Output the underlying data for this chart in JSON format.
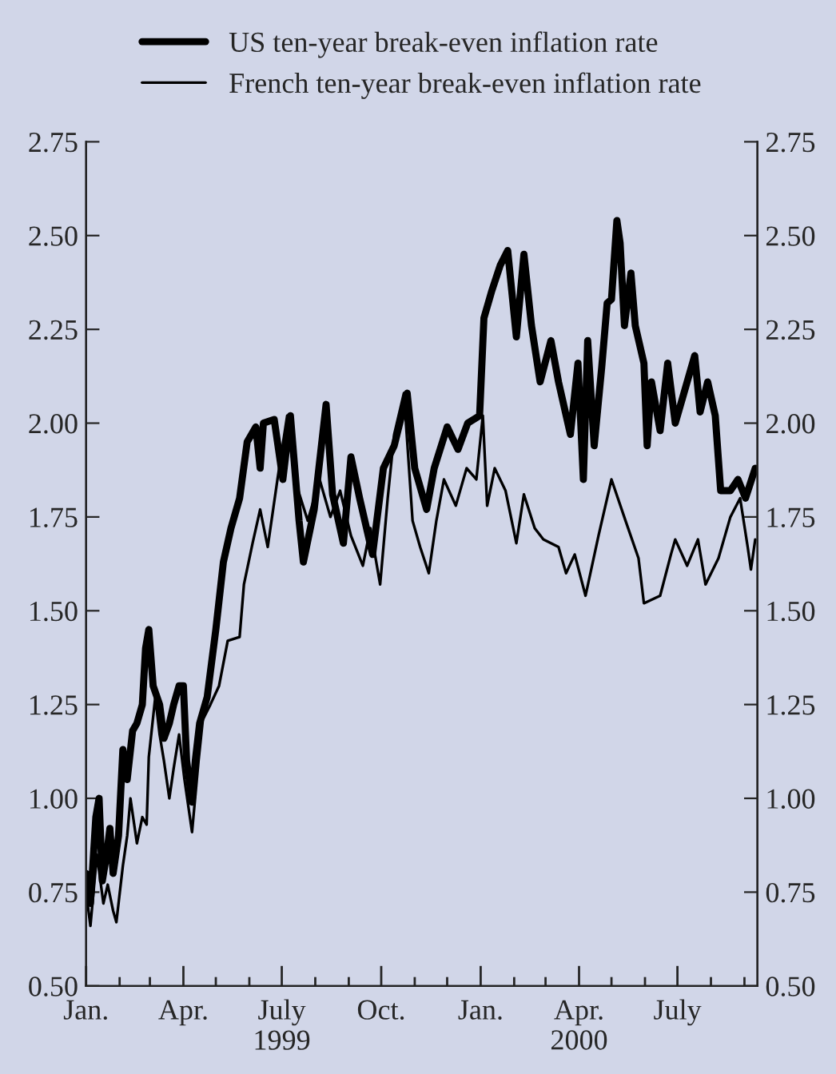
{
  "chart_data": {
    "type": "line",
    "series": [
      {
        "name": "US ten-year break-even inflation rate",
        "color": "#000000",
        "x": [
          "1999-01-01",
          "1999-01-05",
          "1999-01-10",
          "1999-01-13",
          "1999-01-16",
          "1999-01-20",
          "1999-01-23",
          "1999-01-26",
          "1999-01-31",
          "1999-02-04",
          "1999-02-08",
          "1999-02-13",
          "1999-02-17",
          "1999-02-22",
          "1999-02-25",
          "1999-02-28",
          "1999-03-04",
          "1999-03-10",
          "1999-03-14",
          "1999-03-19",
          "1999-03-23",
          "1999-03-28",
          "1999-04-01",
          "1999-04-04",
          "1999-04-09",
          "1999-04-12",
          "1999-04-16",
          "1999-04-23",
          "1999-05-01",
          "1999-05-08",
          "1999-05-15",
          "1999-05-23",
          "1999-05-30",
          "1999-06-07",
          "1999-06-11",
          "1999-06-14",
          "1999-06-24",
          "1999-07-02",
          "1999-07-09",
          "1999-07-17",
          "1999-07-21",
          "1999-07-31",
          "1999-08-11",
          "1999-08-17",
          "1999-08-27",
          "1999-09-03",
          "1999-09-11",
          "1999-09-23",
          "1999-10-03",
          "1999-10-13",
          "1999-10-25",
          "1999-11-01",
          "1999-11-12",
          "1999-11-19",
          "1999-12-01",
          "1999-12-11",
          "1999-12-20",
          "1999-12-31",
          "2000-01-04",
          "2000-01-11",
          "2000-01-19",
          "2000-01-26",
          "2000-02-03",
          "2000-02-10",
          "2000-02-17",
          "2000-02-25",
          "2000-03-06",
          "2000-03-13",
          "2000-03-24",
          "2000-03-31",
          "2000-04-05",
          "2000-04-09",
          "2000-04-15",
          "2000-04-22",
          "2000-04-27",
          "2000-05-01",
          "2000-05-06",
          "2000-05-09",
          "2000-05-13",
          "2000-05-19",
          "2000-05-23",
          "2000-05-31",
          "2000-06-03",
          "2000-06-07",
          "2000-06-15",
          "2000-06-22",
          "2000-06-29",
          "2000-07-07",
          "2000-07-17",
          "2000-07-22",
          "2000-07-29",
          "2000-08-05",
          "2000-08-10",
          "2000-08-19",
          "2000-08-26",
          "2000-09-02",
          "2000-09-11"
        ],
        "values": [
          0.8,
          0.72,
          0.95,
          1.0,
          0.78,
          0.85,
          0.92,
          0.8,
          0.9,
          1.13,
          1.05,
          1.18,
          1.2,
          1.25,
          1.4,
          1.45,
          1.3,
          1.25,
          1.16,
          1.2,
          1.25,
          1.3,
          1.3,
          1.1,
          0.99,
          1.1,
          1.2,
          1.27,
          1.45,
          1.63,
          1.72,
          1.8,
          1.95,
          1.99,
          1.88,
          2.0,
          2.01,
          1.85,
          2.02,
          1.74,
          1.63,
          1.77,
          2.05,
          1.81,
          1.68,
          1.91,
          1.8,
          1.65,
          1.88,
          1.94,
          2.08,
          1.88,
          1.77,
          1.88,
          1.99,
          1.93,
          2.0,
          2.02,
          2.28,
          2.35,
          2.42,
          2.46,
          2.23,
          2.45,
          2.26,
          2.11,
          2.22,
          2.11,
          1.97,
          2.16,
          1.85,
          2.22,
          1.94,
          2.15,
          2.32,
          2.33,
          2.54,
          2.48,
          2.26,
          2.4,
          2.26,
          2.16,
          1.94,
          2.11,
          1.98,
          2.16,
          2.0,
          2.08,
          2.18,
          2.03,
          2.11,
          2.02,
          1.82,
          1.82,
          1.85,
          1.8,
          1.88
        ]
      },
      {
        "name": "French ten-year break-even inflation rate",
        "color": "#000000",
        "x": [
          "1999-01-01",
          "1999-01-05",
          "1999-01-11",
          "1999-01-17",
          "1999-01-21",
          "1999-01-26",
          "1999-01-29",
          "1999-02-04",
          "1999-02-08",
          "1999-02-11",
          "1999-02-17",
          "1999-02-22",
          "1999-02-26",
          "1999-02-28",
          "1999-03-06",
          "1999-03-10",
          "1999-03-14",
          "1999-03-19",
          "1999-03-23",
          "1999-03-28",
          "1999-04-02",
          "1999-04-09",
          "1999-04-15",
          "1999-04-19",
          "1999-04-26",
          "1999-05-04",
          "1999-05-12",
          "1999-05-23",
          "1999-05-27",
          "1999-06-04",
          "1999-06-11",
          "1999-06-18",
          "1999-06-27",
          "1999-07-06",
          "1999-07-13",
          "1999-07-25",
          "1999-08-05",
          "1999-08-15",
          "1999-08-24",
          "1999-09-03",
          "1999-09-14",
          "1999-09-21",
          "1999-09-30",
          "1999-10-07",
          "1999-10-13",
          "1999-10-22",
          "1999-10-30",
          "1999-11-06",
          "1999-11-14",
          "1999-11-21",
          "1999-11-28",
          "1999-12-09",
          "1999-12-19",
          "1999-12-28",
          "2000-01-03",
          "2000-01-07",
          "2000-01-14",
          "2000-01-24",
          "2000-02-03",
          "2000-02-10",
          "2000-02-20",
          "2000-02-28",
          "2000-03-13",
          "2000-03-20",
          "2000-03-28",
          "2000-04-07",
          "2000-04-19",
          "2000-05-01",
          "2000-05-14",
          "2000-05-26",
          "2000-05-31",
          "2000-06-15",
          "2000-06-25",
          "2000-06-29",
          "2000-07-10",
          "2000-07-20",
          "2000-07-27",
          "2000-08-08",
          "2000-08-19",
          "2000-08-28",
          "2000-09-04",
          "2000-09-07",
          "2000-09-11"
        ],
        "values": [
          0.75,
          0.66,
          0.85,
          0.72,
          0.77,
          0.7,
          0.67,
          0.82,
          0.9,
          1.0,
          0.88,
          0.95,
          0.93,
          1.11,
          1.27,
          1.17,
          1.1,
          1.0,
          1.08,
          1.17,
          1.05,
          0.91,
          1.1,
          1.21,
          1.25,
          1.3,
          1.42,
          1.43,
          1.57,
          1.68,
          1.77,
          1.67,
          1.85,
          2.02,
          1.85,
          1.74,
          1.85,
          1.75,
          1.82,
          1.7,
          1.62,
          1.72,
          1.57,
          1.8,
          1.97,
          2.08,
          1.74,
          1.67,
          1.6,
          1.74,
          1.85,
          1.78,
          1.88,
          1.85,
          2.02,
          1.78,
          1.88,
          1.82,
          1.68,
          1.81,
          1.72,
          1.69,
          1.67,
          1.6,
          1.65,
          1.54,
          1.7,
          1.85,
          1.74,
          1.64,
          1.52,
          1.54,
          1.65,
          1.69,
          1.62,
          1.69,
          1.57,
          1.64,
          1.75,
          1.8,
          1.67,
          1.61,
          1.69
        ]
      }
    ],
    "xlim": [
      "1999-01-01",
      "2000-09-13"
    ],
    "xticks": [
      {
        "value": "1999-01-01",
        "label": "Jan."
      },
      {
        "value": "1999-02-01",
        "label": null
      },
      {
        "value": "1999-03-01",
        "label": null
      },
      {
        "value": "1999-04-01",
        "label": "Apr."
      },
      {
        "value": "1999-05-01",
        "label": null
      },
      {
        "value": "1999-06-01",
        "label": null
      },
      {
        "value": "1999-07-01",
        "label": "July\n1999"
      },
      {
        "value": "1999-08-01",
        "label": null
      },
      {
        "value": "1999-09-01",
        "label": null
      },
      {
        "value": "1999-10-01",
        "label": "Oct."
      },
      {
        "value": "1999-11-01",
        "label": null
      },
      {
        "value": "1999-12-01",
        "label": null
      },
      {
        "value": "2000-01-01",
        "label": "Jan."
      },
      {
        "value": "2000-02-01",
        "label": null
      },
      {
        "value": "2000-03-01",
        "label": null
      },
      {
        "value": "2000-04-01",
        "label": "Apr.\n2000"
      },
      {
        "value": "2000-05-01",
        "label": null
      },
      {
        "value": "2000-06-01",
        "label": null
      },
      {
        "value": "2000-07-01",
        "label": "July"
      },
      {
        "value": "2000-08-01",
        "label": null
      },
      {
        "value": "2000-09-01",
        "label": null
      }
    ],
    "ylim": [
      0.5,
      2.75
    ],
    "yticks": [
      {
        "value": 0.5,
        "label": "0.50"
      },
      {
        "value": 0.75,
        "label": "0.75"
      },
      {
        "value": 1.0,
        "label": "1.00"
      },
      {
        "value": 1.25,
        "label": "1.25"
      },
      {
        "value": 1.5,
        "label": "1.50"
      },
      {
        "value": 1.75,
        "label": "1.75"
      },
      {
        "value": 2.0,
        "label": "2.00"
      },
      {
        "value": 2.25,
        "label": "2.25"
      },
      {
        "value": 2.5,
        "label": "2.50"
      },
      {
        "value": 2.75,
        "label": "2.75"
      }
    ],
    "y2lim": [
      0.5,
      2.75
    ],
    "y2ticks": [
      {
        "value": 0.5,
        "label": "0.50"
      },
      {
        "value": 0.75,
        "label": "0.75"
      },
      {
        "value": 1.0,
        "label": "1.00"
      },
      {
        "value": 1.25,
        "label": "1.25"
      },
      {
        "value": 1.5,
        "label": "1.50"
      },
      {
        "value": 1.75,
        "label": "1.75"
      },
      {
        "value": 2.0,
        "label": "2.00"
      },
      {
        "value": 2.25,
        "label": "2.25"
      },
      {
        "value": 2.5,
        "label": "2.50"
      },
      {
        "value": 2.75,
        "label": "2.75"
      }
    ],
    "legend": "top",
    "grid": false,
    "line_style": "solid"
  }
}
